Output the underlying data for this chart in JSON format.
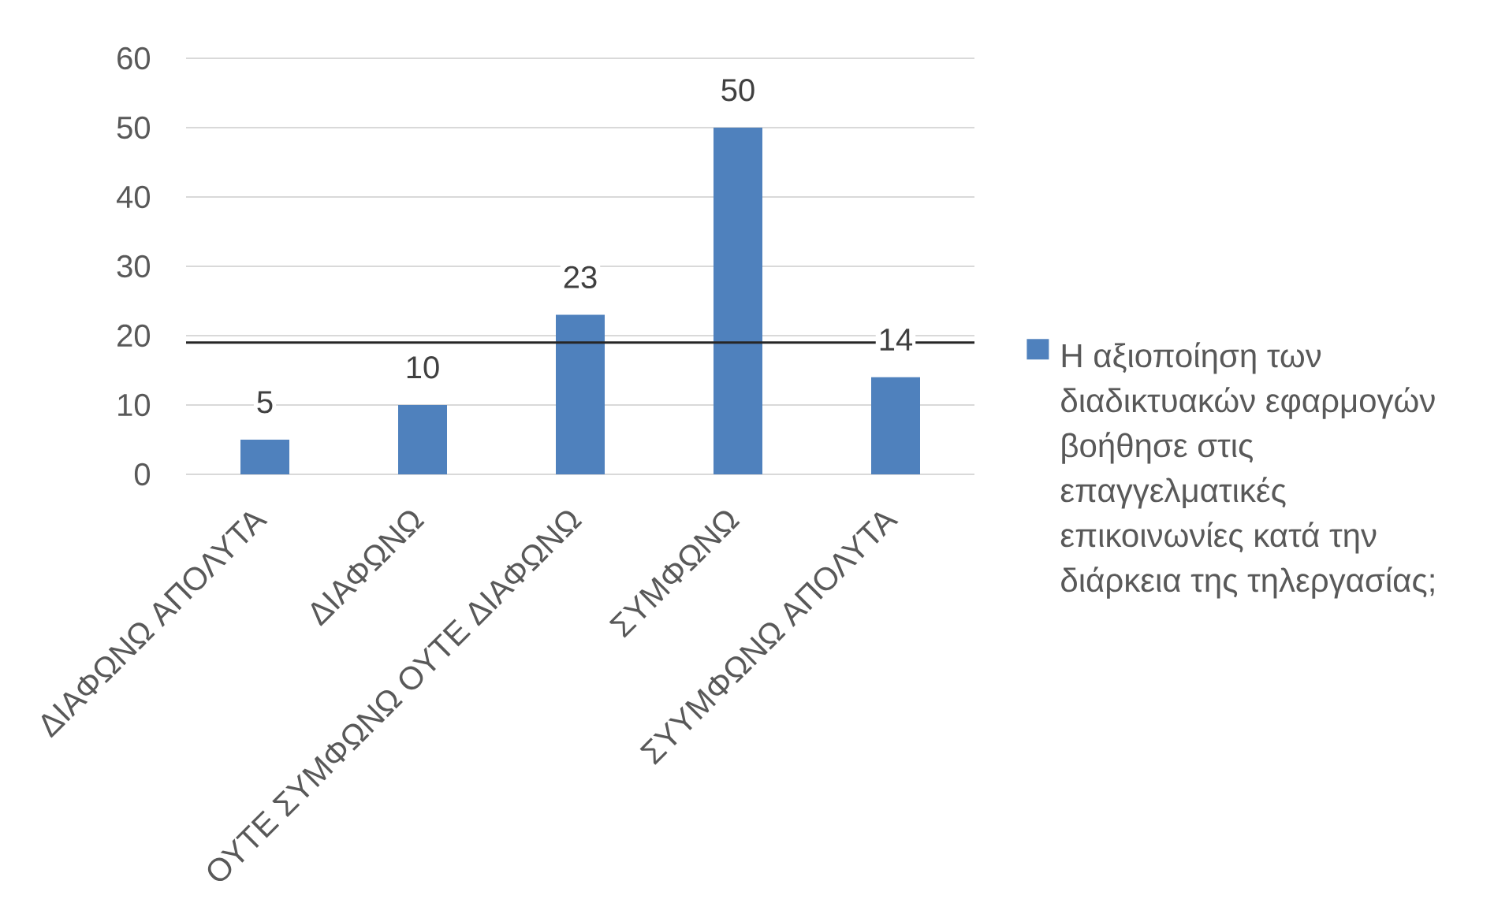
{
  "chart_data": {
    "type": "bar",
    "categories": [
      "ΔΙΑΦΩΝΩ ΑΠΟΛΥΤΑ",
      "ΔΙΑΦΩΝΩ",
      "ΟΥΤΕ ΣΥΜΦΩΝΩ ΟΥΤΕ ΔΙΑΦΩΝΩ",
      "ΣΥΜΦΩΝΩ",
      "ΣΥΥΜΦΩΝΩ ΑΠΟΛΥΤΑ"
    ],
    "series": [
      {
        "name": "Η αξιοποίηση των διαδικτυακών εφαρμογών βοήθησε στις επαγγελματικές επικοινωνίες κατά την διάρκεια της τηλεργασίας;",
        "color": "#4f81bd",
        "values": [
          5,
          10,
          23,
          50,
          14
        ]
      }
    ],
    "ylim": [
      0,
      60
    ],
    "yticks": [
      0,
      10,
      20,
      30,
      40,
      50,
      60
    ],
    "grid": "y",
    "legend": "right",
    "data_labels": true,
    "ref_lines": [
      {
        "axis": "y",
        "value": 19,
        "color": "#262626"
      }
    ]
  }
}
